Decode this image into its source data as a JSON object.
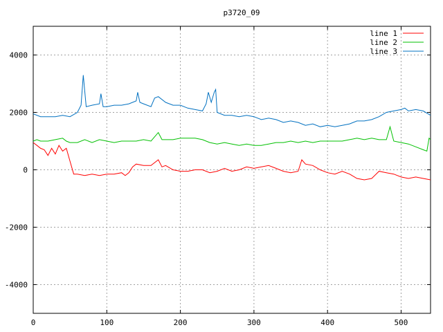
{
  "chart_data": {
    "type": "line",
    "title": "p3720_09",
    "xlim": [
      0,
      540
    ],
    "ylim": [
      -5000,
      5000
    ],
    "xticks": [
      0,
      100,
      200,
      300,
      400,
      500
    ],
    "yticks": [
      -4000,
      -2000,
      0,
      2000,
      4000
    ],
    "xtick_labels": [
      "0",
      "100",
      "200",
      "300",
      "400",
      "500"
    ],
    "ytick_labels": [
      "-4000",
      "-2000",
      "0",
      "2000",
      "4000"
    ],
    "grid": true,
    "legend_position": "top-right",
    "series": [
      {
        "name": "line 1",
        "color": "#ff0000",
        "points": [
          [
            0,
            950
          ],
          [
            5,
            850
          ],
          [
            10,
            750
          ],
          [
            15,
            700
          ],
          [
            20,
            500
          ],
          [
            25,
            750
          ],
          [
            30,
            550
          ],
          [
            35,
            850
          ],
          [
            40,
            650
          ],
          [
            45,
            750
          ],
          [
            50,
            300
          ],
          [
            55,
            -150
          ],
          [
            60,
            -150
          ],
          [
            70,
            -200
          ],
          [
            80,
            -150
          ],
          [
            90,
            -200
          ],
          [
            100,
            -150
          ],
          [
            110,
            -150
          ],
          [
            120,
            -100
          ],
          [
            125,
            -200
          ],
          [
            130,
            -100
          ],
          [
            135,
            100
          ],
          [
            140,
            200
          ],
          [
            150,
            150
          ],
          [
            160,
            150
          ],
          [
            165,
            250
          ],
          [
            170,
            350
          ],
          [
            175,
            100
          ],
          [
            180,
            150
          ],
          [
            190,
            0
          ],
          [
            200,
            -50
          ],
          [
            210,
            -50
          ],
          [
            220,
            0
          ],
          [
            230,
            0
          ],
          [
            240,
            -100
          ],
          [
            250,
            -50
          ],
          [
            260,
            50
          ],
          [
            270,
            -50
          ],
          [
            280,
            0
          ],
          [
            290,
            100
          ],
          [
            300,
            50
          ],
          [
            310,
            100
          ],
          [
            320,
            150
          ],
          [
            330,
            50
          ],
          [
            340,
            -50
          ],
          [
            350,
            -100
          ],
          [
            360,
            -50
          ],
          [
            365,
            350
          ],
          [
            370,
            200
          ],
          [
            380,
            150
          ],
          [
            390,
            0
          ],
          [
            400,
            -100
          ],
          [
            410,
            -150
          ],
          [
            420,
            -50
          ],
          [
            430,
            -150
          ],
          [
            440,
            -300
          ],
          [
            450,
            -350
          ],
          [
            460,
            -300
          ],
          [
            470,
            -50
          ],
          [
            480,
            -100
          ],
          [
            490,
            -150
          ],
          [
            500,
            -250
          ],
          [
            510,
            -300
          ],
          [
            520,
            -250
          ],
          [
            530,
            -300
          ],
          [
            540,
            -350
          ]
        ]
      },
      {
        "name": "line 2",
        "color": "#00c000",
        "points": [
          [
            0,
            1000
          ],
          [
            5,
            1050
          ],
          [
            10,
            1000
          ],
          [
            20,
            1000
          ],
          [
            30,
            1050
          ],
          [
            40,
            1100
          ],
          [
            45,
            1000
          ],
          [
            50,
            950
          ],
          [
            60,
            950
          ],
          [
            70,
            1050
          ],
          [
            80,
            950
          ],
          [
            90,
            1050
          ],
          [
            100,
            1000
          ],
          [
            110,
            950
          ],
          [
            120,
            1000
          ],
          [
            130,
            1000
          ],
          [
            140,
            1000
          ],
          [
            150,
            1050
          ],
          [
            160,
            1000
          ],
          [
            170,
            1300
          ],
          [
            175,
            1050
          ],
          [
            180,
            1050
          ],
          [
            190,
            1050
          ],
          [
            200,
            1100
          ],
          [
            210,
            1100
          ],
          [
            220,
            1100
          ],
          [
            230,
            1050
          ],
          [
            240,
            950
          ],
          [
            250,
            900
          ],
          [
            260,
            950
          ],
          [
            270,
            900
          ],
          [
            280,
            850
          ],
          [
            290,
            900
          ],
          [
            300,
            850
          ],
          [
            310,
            850
          ],
          [
            320,
            900
          ],
          [
            330,
            950
          ],
          [
            340,
            950
          ],
          [
            350,
            1000
          ],
          [
            360,
            950
          ],
          [
            370,
            1000
          ],
          [
            380,
            950
          ],
          [
            390,
            1000
          ],
          [
            400,
            1000
          ],
          [
            410,
            1000
          ],
          [
            420,
            1000
          ],
          [
            430,
            1050
          ],
          [
            440,
            1100
          ],
          [
            450,
            1050
          ],
          [
            460,
            1100
          ],
          [
            470,
            1050
          ],
          [
            480,
            1050
          ],
          [
            485,
            1500
          ],
          [
            490,
            1000
          ],
          [
            500,
            950
          ],
          [
            510,
            900
          ],
          [
            520,
            800
          ],
          [
            530,
            700
          ],
          [
            535,
            650
          ],
          [
            538,
            1100
          ],
          [
            540,
            1050
          ]
        ]
      },
      {
        "name": "line 3",
        "color": "#0070c0",
        "points": [
          [
            0,
            1950
          ],
          [
            10,
            1850
          ],
          [
            20,
            1850
          ],
          [
            30,
            1850
          ],
          [
            40,
            1900
          ],
          [
            50,
            1850
          ],
          [
            60,
            2000
          ],
          [
            65,
            2250
          ],
          [
            68,
            3300
          ],
          [
            72,
            2200
          ],
          [
            80,
            2250
          ],
          [
            90,
            2300
          ],
          [
            92,
            2650
          ],
          [
            95,
            2200
          ],
          [
            100,
            2200
          ],
          [
            110,
            2250
          ],
          [
            120,
            2250
          ],
          [
            130,
            2300
          ],
          [
            140,
            2400
          ],
          [
            142,
            2700
          ],
          [
            145,
            2350
          ],
          [
            150,
            2300
          ],
          [
            160,
            2200
          ],
          [
            165,
            2500
          ],
          [
            170,
            2550
          ],
          [
            180,
            2350
          ],
          [
            190,
            2250
          ],
          [
            200,
            2250
          ],
          [
            210,
            2150
          ],
          [
            220,
            2100
          ],
          [
            230,
            2050
          ],
          [
            235,
            2300
          ],
          [
            238,
            2700
          ],
          [
            242,
            2350
          ],
          [
            246,
            2700
          ],
          [
            248,
            2800
          ],
          [
            250,
            2000
          ],
          [
            260,
            1900
          ],
          [
            270,
            1900
          ],
          [
            280,
            1850
          ],
          [
            290,
            1900
          ],
          [
            300,
            1850
          ],
          [
            310,
            1750
          ],
          [
            320,
            1800
          ],
          [
            330,
            1750
          ],
          [
            340,
            1650
          ],
          [
            350,
            1700
          ],
          [
            360,
            1650
          ],
          [
            370,
            1550
          ],
          [
            380,
            1600
          ],
          [
            390,
            1500
          ],
          [
            400,
            1550
          ],
          [
            410,
            1500
          ],
          [
            420,
            1550
          ],
          [
            430,
            1600
          ],
          [
            440,
            1700
          ],
          [
            450,
            1700
          ],
          [
            460,
            1750
          ],
          [
            470,
            1850
          ],
          [
            480,
            2000
          ],
          [
            490,
            2050
          ],
          [
            500,
            2100
          ],
          [
            505,
            2150
          ],
          [
            510,
            2050
          ],
          [
            520,
            2100
          ],
          [
            530,
            2050
          ],
          [
            540,
            1900
          ]
        ]
      }
    ]
  }
}
